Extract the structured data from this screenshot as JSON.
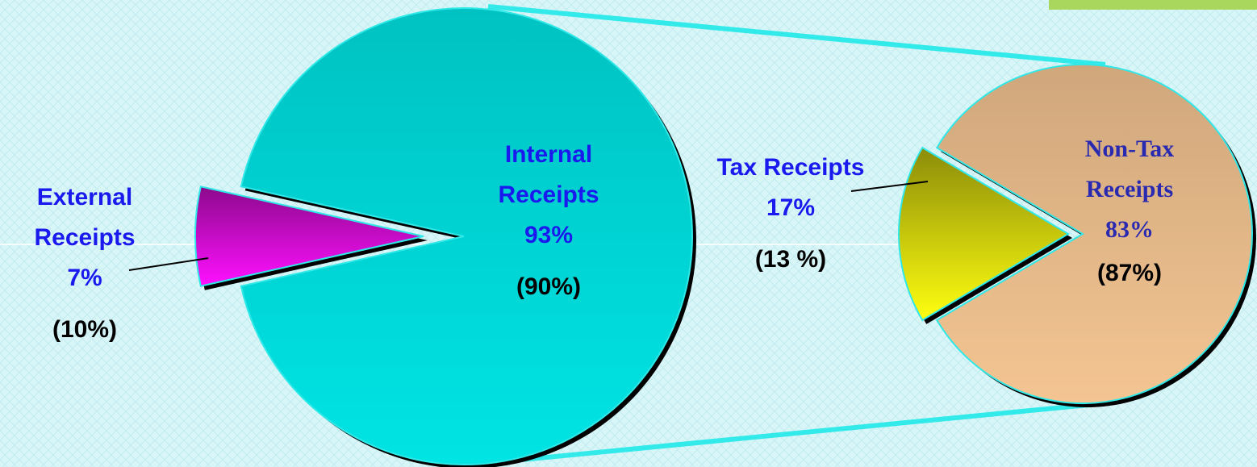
{
  "chart_data": [
    {
      "type": "pie",
      "categories": [
        "External Receipts",
        "Internal Receipts"
      ],
      "values": [
        7,
        93
      ],
      "value_labels": [
        "7%",
        "93%"
      ],
      "comparison_labels": [
        "(10%)",
        "(90%)"
      ],
      "colors": [
        "#ff10ff",
        "#00e4e4"
      ]
    },
    {
      "type": "pie",
      "categories": [
        "Tax Receipts",
        "Non-Tax Receipts"
      ],
      "values": [
        17,
        83
      ],
      "value_labels": [
        "17%",
        "83%"
      ],
      "comparison_labels": [
        "(13 %)",
        "(87%)"
      ],
      "colors": [
        "#ffff10",
        "#f4c592"
      ]
    }
  ]
}
